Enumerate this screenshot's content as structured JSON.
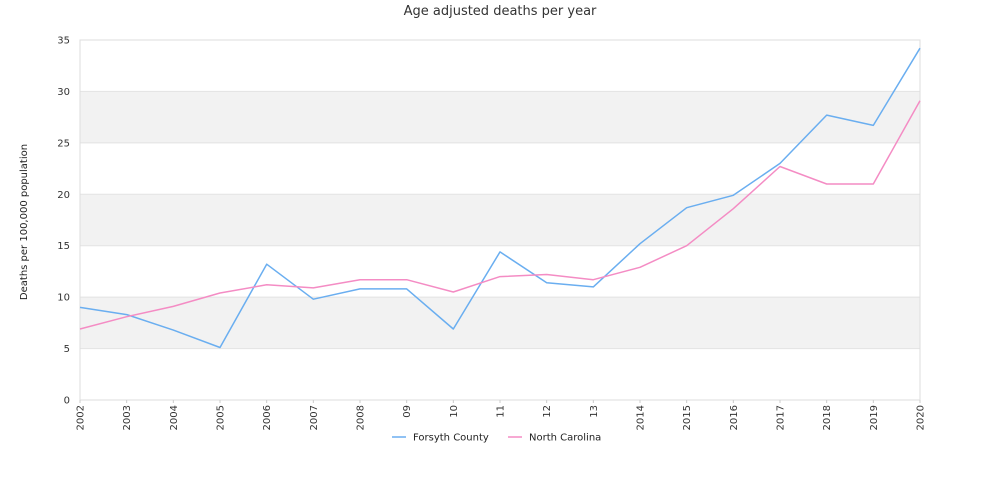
{
  "chart_data": {
    "type": "line",
    "title": "Age adjusted deaths per year",
    "xlabel": "",
    "ylabel": "Deaths per 100,000 population",
    "categories": [
      "2002",
      "2003",
      "2004",
      "2005",
      "2006",
      "2007",
      "2008",
      "09",
      "10",
      "11",
      "12",
      "13",
      "2014",
      "2015",
      "2016",
      "2017",
      "2018",
      "2019",
      "2020"
    ],
    "ylim": [
      0,
      35
    ],
    "yticks": [
      0,
      5,
      10,
      15,
      20,
      25,
      30,
      35
    ],
    "grid": true,
    "legend_position": "bottom",
    "series": [
      {
        "name": "Forsyth County",
        "color": "#6aaef0",
        "values": [
          9.0,
          8.3,
          6.8,
          5.1,
          13.2,
          9.8,
          10.8,
          10.8,
          6.9,
          14.4,
          11.4,
          11.0,
          15.2,
          18.7,
          19.9,
          23.0,
          27.7,
          26.7,
          34.2
        ]
      },
      {
        "name": "North Carolina",
        "color": "#f48cc4",
        "values": [
          6.9,
          8.1,
          9.1,
          10.4,
          11.2,
          10.9,
          11.7,
          11.7,
          10.5,
          12.0,
          12.2,
          11.7,
          12.9,
          15.0,
          18.6,
          22.7,
          21.0,
          21.0,
          29.1
        ]
      }
    ]
  }
}
